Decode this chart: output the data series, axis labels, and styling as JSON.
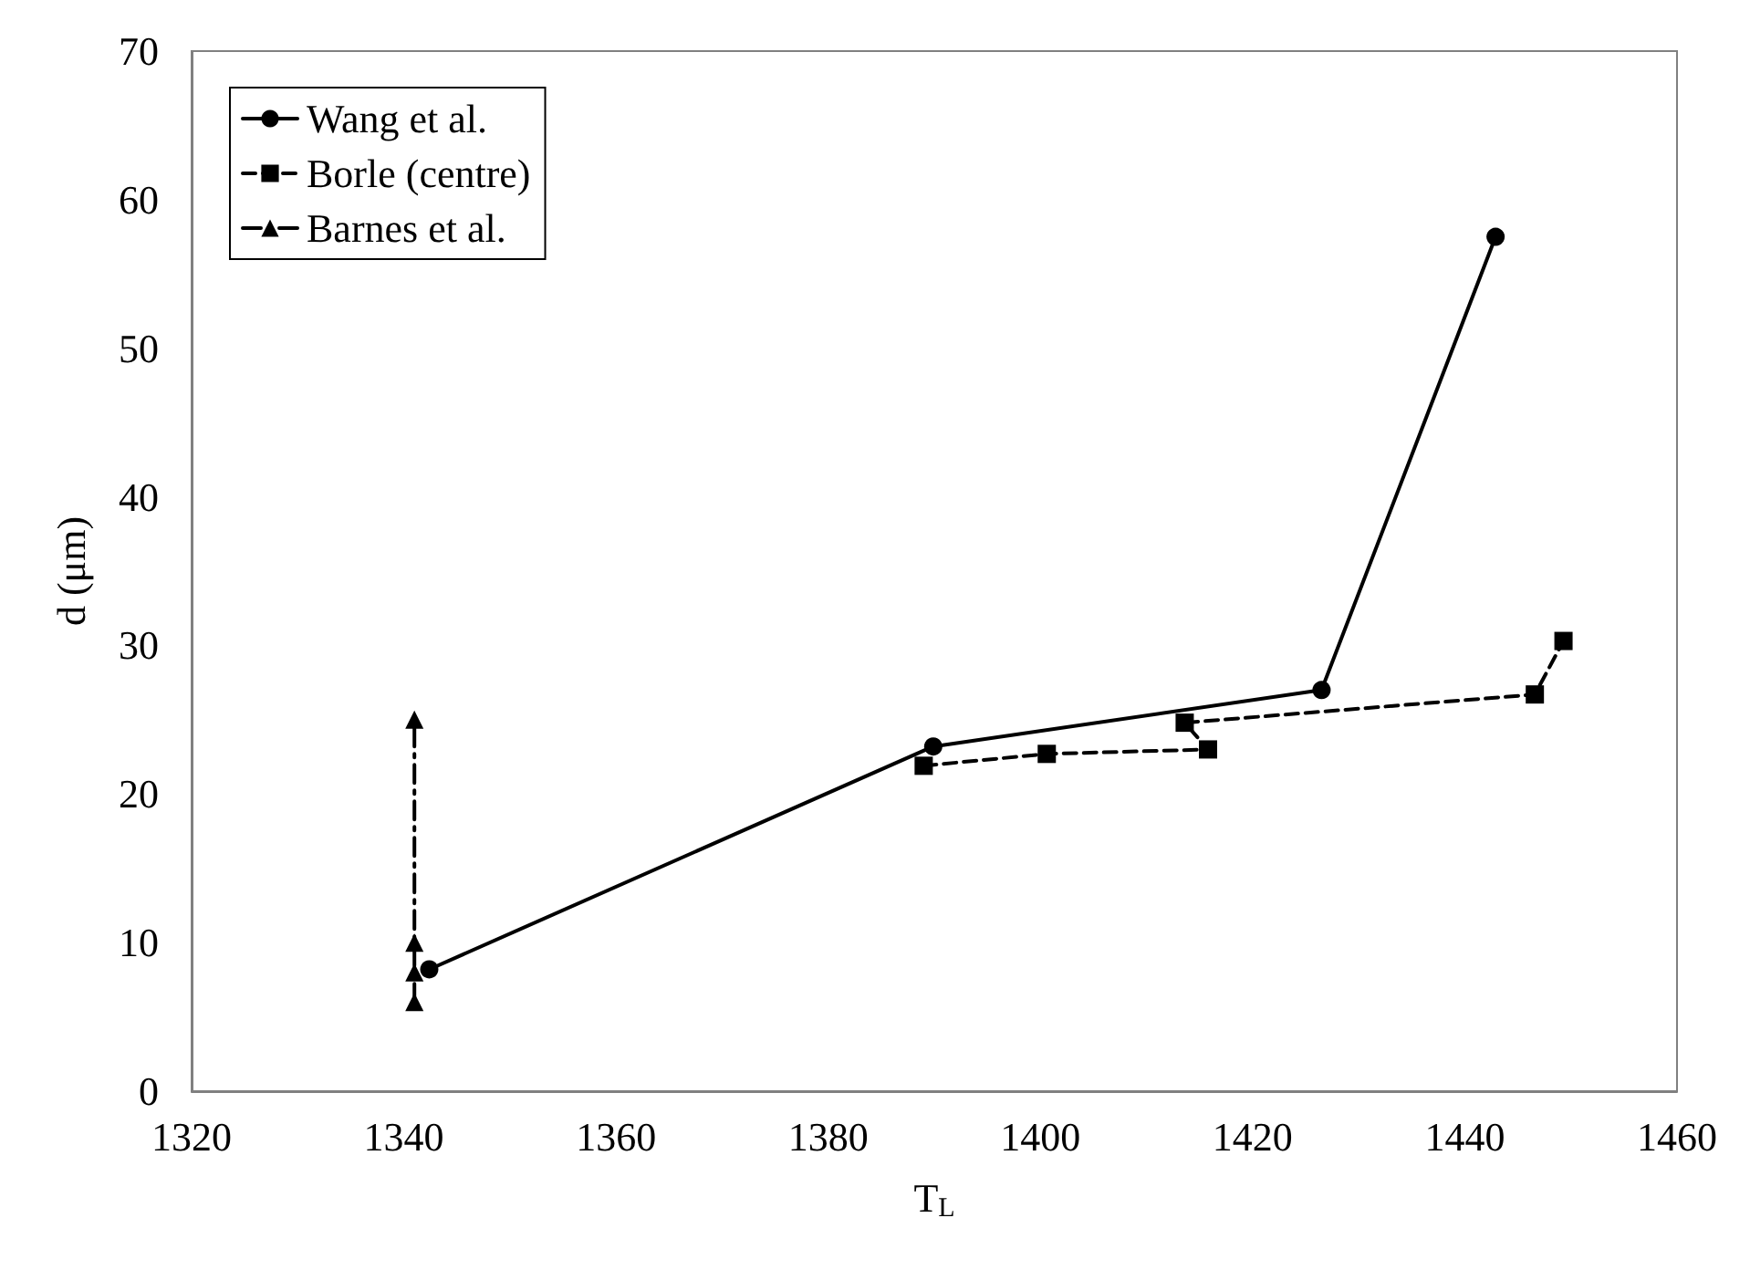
{
  "chart_data": {
    "type": "line",
    "xlabel": "T$_{L}$",
    "ylabel": "d (μm)",
    "xlim": [
      1320,
      1460
    ],
    "xticks": [
      1320,
      1340,
      1360,
      1380,
      1400,
      1420,
      1440,
      1460
    ],
    "ylim": [
      0,
      70
    ],
    "yticks": [
      0,
      10,
      20,
      30,
      40,
      50,
      60,
      70
    ],
    "grid": false,
    "legend": "top left",
    "series": [
      {
        "name": "Wang et al.",
        "color": "#000000",
        "marker": "circle",
        "line_style": "solid",
        "x": [
          1342.4,
          1389.9,
          1426.5,
          1442.9
        ],
        "values": [
          8.2,
          23.2,
          27.0,
          57.5
        ]
      },
      {
        "name": "Borle (centre)",
        "color": "#000000",
        "marker": "square",
        "line_style": "dashed",
        "x": [
          1389.0,
          1400.6,
          1415.8,
          1413.6,
          1446.6,
          1449.3
        ],
        "values": [
          21.9,
          22.7,
          23.0,
          24.8,
          26.7,
          30.3
        ]
      },
      {
        "name": "Barnes et al.",
        "color": "#000000",
        "marker": "triangle",
        "line_style": "dashdot",
        "x": [
          1341,
          1341,
          1341,
          1341
        ],
        "values": [
          6,
          8,
          10,
          25
        ]
      }
    ]
  }
}
